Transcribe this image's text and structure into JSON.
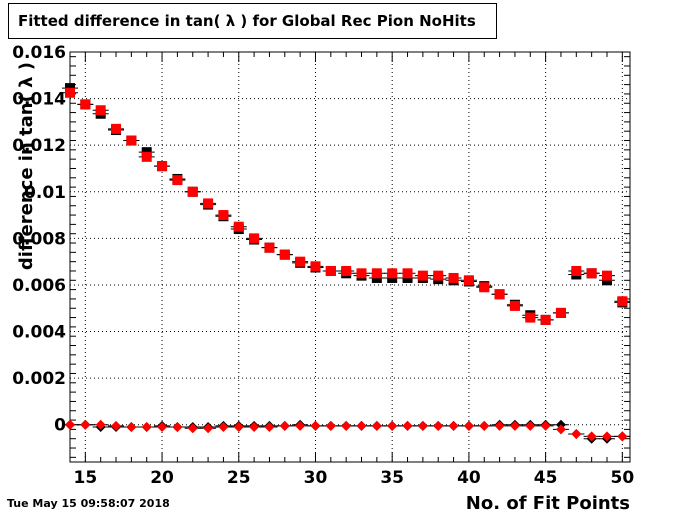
{
  "chart_data": {
    "type": "scatter",
    "title": "Fitted difference in tan( λ ) for Global Rec Pion NoHits",
    "xlabel": "No. of Fit Points",
    "ylabel": "difference in tan( λ )",
    "xlim": [
      14,
      50.5
    ],
    "ylim": [
      -0.0016,
      0.016
    ],
    "grid": true,
    "x_ticks": [
      "15",
      "20",
      "25",
      "30",
      "35",
      "40",
      "45",
      "50"
    ],
    "y_ticks": [
      "0",
      "0.002",
      "0.004",
      "0.006",
      "0.008",
      "0.01",
      "0.012",
      "0.014",
      "0.016"
    ],
    "series": [
      {
        "marker": "square",
        "color": "#000000",
        "x": [
          14,
          15,
          16,
          17,
          18,
          19,
          20,
          21,
          22,
          23,
          24,
          25,
          26,
          27,
          28,
          29,
          30,
          31,
          32,
          33,
          34,
          35,
          36,
          37,
          38,
          39,
          40,
          41,
          42,
          43,
          44,
          45,
          46,
          47,
          48,
          49,
          50
        ],
        "y": [
          0.01445,
          0.01375,
          0.01335,
          0.01265,
          0.0122,
          0.0117,
          0.0111,
          0.01055,
          0.01,
          0.00945,
          0.00895,
          0.0084,
          0.00795,
          0.0076,
          0.0073,
          0.00695,
          0.00675,
          0.0066,
          0.0065,
          0.0064,
          0.0063,
          0.0063,
          0.0063,
          0.0063,
          0.00625,
          0.0062,
          0.00615,
          0.00595,
          0.0056,
          0.00515,
          0.0047,
          0.0045,
          0.0048,
          0.00645,
          0.0065,
          0.0062,
          0.00525
        ]
      },
      {
        "marker": "square",
        "color": "#ff0000",
        "x": [
          14,
          15,
          16,
          17,
          18,
          19,
          20,
          21,
          22,
          23,
          24,
          25,
          26,
          27,
          28,
          29,
          30,
          31,
          32,
          33,
          34,
          35,
          36,
          37,
          38,
          39,
          40,
          41,
          42,
          43,
          44,
          45,
          46,
          47,
          48,
          49,
          50
        ],
        "y": [
          0.01425,
          0.01375,
          0.0135,
          0.0127,
          0.0122,
          0.0115,
          0.0111,
          0.0105,
          0.01,
          0.0095,
          0.009,
          0.0085,
          0.008,
          0.0076,
          0.0073,
          0.007,
          0.0068,
          0.0066,
          0.0066,
          0.0065,
          0.0065,
          0.0065,
          0.0065,
          0.0064,
          0.0064,
          0.0063,
          0.0062,
          0.0059,
          0.0056,
          0.0051,
          0.0046,
          0.0045,
          0.0048,
          0.0066,
          0.0065,
          0.0064,
          0.0053
        ]
      },
      {
        "marker": "diamond",
        "color": "#000000",
        "x": [
          14,
          15,
          16,
          17,
          18,
          19,
          20,
          21,
          22,
          23,
          24,
          25,
          26,
          27,
          28,
          29,
          30,
          31,
          32,
          33,
          34,
          35,
          36,
          37,
          38,
          39,
          40,
          41,
          42,
          43,
          44,
          45,
          46,
          47,
          48,
          49,
          50
        ],
        "y": [
          0,
          0,
          -0.0001,
          -0.0001,
          -0.0001,
          -0.0001,
          -5e-05,
          -0.0001,
          -0.0001,
          -0.0001,
          -5e-05,
          -5e-05,
          -5e-05,
          -5e-05,
          -5e-05,
          0,
          -5e-05,
          -5e-05,
          -5e-05,
          -5e-05,
          -5e-05,
          -5e-05,
          -5e-05,
          -5e-05,
          -5e-05,
          -5e-05,
          -5e-05,
          -5e-05,
          0,
          0,
          0,
          0,
          0,
          -0.0004,
          -0.0006,
          -0.0006,
          -0.0005
        ]
      },
      {
        "marker": "diamond",
        "color": "#ff0000",
        "x": [
          14,
          15,
          16,
          17,
          18,
          19,
          20,
          21,
          22,
          23,
          24,
          25,
          26,
          27,
          28,
          29,
          30,
          31,
          32,
          33,
          34,
          35,
          36,
          37,
          38,
          39,
          40,
          41,
          42,
          43,
          44,
          45,
          46,
          47,
          48,
          49,
          50
        ],
        "y": [
          0,
          0,
          0,
          -5e-05,
          -0.0001,
          -0.0001,
          -0.0001,
          -0.0001,
          -0.00015,
          -0.00015,
          -0.0001,
          -0.0001,
          -0.0001,
          -0.0001,
          -5e-05,
          -5e-05,
          -5e-05,
          -5e-05,
          -5e-05,
          -5e-05,
          -5e-05,
          -5e-05,
          -5e-05,
          -5e-05,
          -5e-05,
          -5e-05,
          -5e-05,
          -5e-05,
          -5e-05,
          -5e-05,
          -5e-05,
          -5e-05,
          -0.0002,
          -0.0004,
          -0.0005,
          -0.0005,
          -0.0005
        ]
      }
    ]
  },
  "footer": {
    "timestamp": "Tue May 15 09:58:07 2018"
  }
}
